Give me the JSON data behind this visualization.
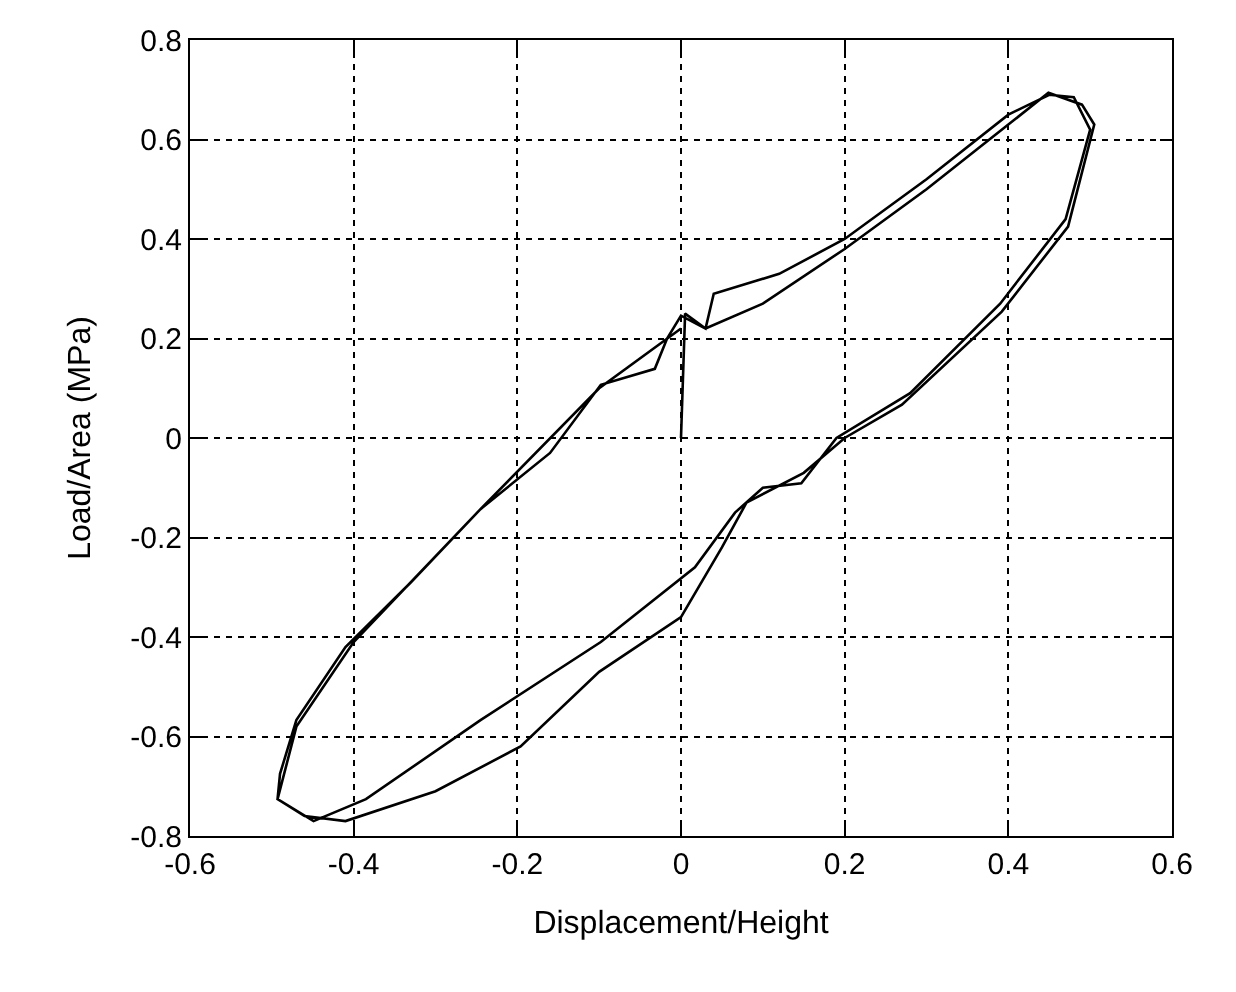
{
  "chart_data": {
    "type": "line",
    "xlabel": "Displacement/Height",
    "ylabel": "Load/Area (MPa)",
    "xlim": [
      -0.6,
      0.6
    ],
    "xticks": [
      -0.6,
      -0.4,
      -0.2,
      0,
      0.2,
      0.4,
      0.6
    ],
    "ylim": [
      -0.8,
      0.8
    ],
    "yticks": [
      -0.8,
      -0.6,
      -0.4,
      -0.2,
      0,
      0.2,
      0.4,
      0.6,
      0.8
    ],
    "grid": true,
    "marker": "none",
    "line_style": "solid",
    "series": [
      {
        "color": "#000000",
        "x": [
          0,
          0.005,
          0.03,
          0.1,
          0.2,
          0.3,
          0.4,
          0.449,
          0.49,
          0.505,
          0.473,
          0.392,
          0.27,
          0.2,
          0.15,
          0.08,
          0.05,
          0,
          -0.1,
          -0.196,
          -0.3,
          -0.41,
          -0.46,
          -0.493,
          -0.49,
          -0.47,
          -0.41,
          -0.33,
          -0.245,
          -0.16,
          -0.098,
          -0.032,
          -0.017,
          0,
          0.03,
          0.04,
          0.12,
          0.2,
          0.3,
          0.4,
          0.45,
          0.48,
          0.5,
          0.47,
          0.39,
          0.28,
          0.19,
          0.147,
          0.1,
          0.066,
          0.017,
          -0.098,
          -0.245,
          -0.385,
          -0.449,
          -0.493,
          -0.47,
          -0.4,
          -0.245,
          -0.1,
          0
        ],
        "values": [
          0,
          0.25,
          0.22,
          0.27,
          0.38,
          0.5,
          0.63,
          0.694,
          0.67,
          0.63,
          0.425,
          0.254,
          0.067,
          0,
          -0.07,
          -0.13,
          -0.22,
          -0.36,
          -0.47,
          -0.62,
          -0.71,
          -0.77,
          -0.76,
          -0.726,
          -0.675,
          -0.567,
          -0.42,
          -0.29,
          -0.143,
          -0.03,
          0.107,
          0.139,
          0.2,
          0.246,
          0.22,
          0.29,
          0.33,
          0.4,
          0.52,
          0.65,
          0.69,
          0.685,
          0.62,
          0.44,
          0.27,
          0.09,
          0,
          -0.091,
          -0.1,
          -0.15,
          -0.26,
          -0.41,
          -0.567,
          -0.726,
          -0.77,
          -0.726,
          -0.58,
          -0.41,
          -0.143,
          0.1,
          0.22
        ]
      }
    ]
  }
}
